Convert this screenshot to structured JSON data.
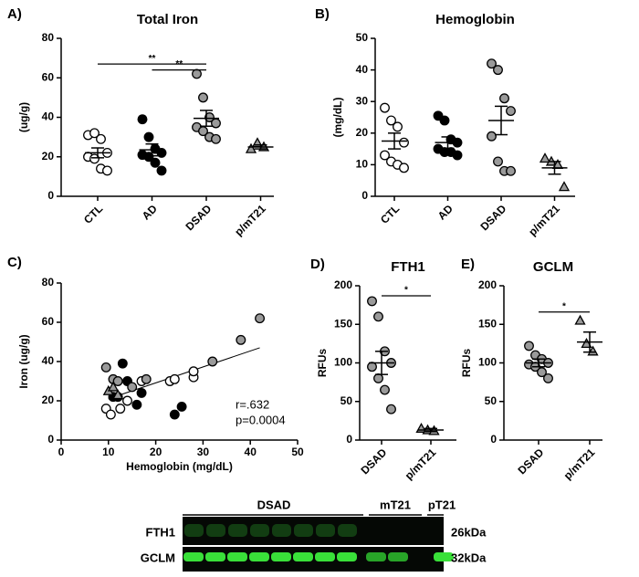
{
  "chart_data": [
    {
      "type": "dot",
      "panel": "A)",
      "title": "Total Iron",
      "y_label": "(ug/g)",
      "categories": [
        "CTL",
        "AD",
        "DSAD",
        "p/mT21"
      ],
      "points": [
        [
          31,
          32,
          29,
          22,
          20,
          19,
          14,
          13
        ],
        [
          39,
          30,
          24,
          22,
          21,
          20,
          17,
          13
        ],
        [
          62,
          50,
          40,
          37,
          35,
          33,
          30,
          29
        ],
        [
          24,
          27,
          25
        ]
      ],
      "means": [
        22,
        23.5,
        39.5,
        25
      ],
      "errors": [
        2.5,
        3,
        4,
        1
      ],
      "colors": [
        "#ffffff",
        "#000000",
        "#9a9a9a",
        "#9a9a9a"
      ],
      "markers": [
        "circle",
        "circle",
        "circle",
        "triangle"
      ],
      "ylim": [
        0,
        80
      ],
      "yticks": [
        0,
        20,
        40,
        60,
        80
      ],
      "significance": [
        {
          "from": 0,
          "to": 2,
          "y": 67,
          "label": "**"
        },
        {
          "from": 1,
          "to": 2,
          "y": 64,
          "label": "**"
        }
      ]
    },
    {
      "type": "dot",
      "panel": "B)",
      "title": "Hemoglobin",
      "y_label": "(mg/dL)",
      "categories": [
        "CTL",
        "AD",
        "DSAD",
        "p/mT21"
      ],
      "points": [
        [
          28,
          24,
          22,
          17,
          13,
          11,
          10,
          9
        ],
        [
          25.5,
          24,
          18,
          17,
          15,
          14,
          14,
          13
        ],
        [
          42,
          40,
          31,
          27,
          19,
          11,
          8,
          8
        ],
        [
          12,
          11,
          10,
          3
        ]
      ],
      "means": [
        17.5,
        17,
        24,
        9
      ],
      "errors": [
        2.5,
        1.8,
        4.5,
        2
      ],
      "colors": [
        "#ffffff",
        "#000000",
        "#9a9a9a",
        "#9a9a9a"
      ],
      "markers": [
        "circle",
        "circle",
        "circle",
        "triangle"
      ],
      "ylim": [
        0,
        50
      ],
      "yticks": [
        0,
        10,
        20,
        30,
        40,
        50
      ]
    },
    {
      "type": "scatter",
      "panel": "C)",
      "x_label": "Hemoglobin (mg/dL)",
      "y_label": "Iron (ug/g)",
      "series": [
        {
          "color": "#ffffff",
          "marker": "circle",
          "x": [
            9.5,
            10.5,
            12.5,
            14,
            17,
            23,
            24,
            28,
            28
          ],
          "values": [
            16,
            13,
            16,
            20,
            30,
            30,
            31,
            32,
            35
          ]
        },
        {
          "color": "#000000",
          "marker": "circle",
          "x": [
            11,
            12,
            13,
            14,
            16,
            17,
            24,
            25.5
          ],
          "values": [
            22,
            22,
            39,
            30,
            18,
            24,
            13,
            17
          ]
        },
        {
          "color": "#9a9a9a",
          "marker": "circle",
          "x": [
            9.5,
            11,
            12,
            15,
            18,
            32,
            38,
            42
          ],
          "values": [
            37,
            31,
            30,
            27,
            31,
            40,
            51,
            62
          ]
        },
        {
          "color": "#9a9a9a",
          "marker": "triangle",
          "x": [
            10,
            11,
            12
          ],
          "values": [
            25,
            27,
            23
          ]
        }
      ],
      "trendline": {
        "x": [
          10,
          42
        ],
        "values": [
          21,
          47
        ]
      },
      "annotations": [
        "r=.632",
        "p=0.0004"
      ],
      "xlim": [
        0,
        50
      ],
      "xticks": [
        0,
        10,
        20,
        30,
        40,
        50
      ],
      "ylim": [
        0,
        80
      ],
      "yticks": [
        0,
        20,
        40,
        60,
        80
      ]
    },
    {
      "type": "dot",
      "panel": "D)",
      "title": "FTH1",
      "y_label": "RFUs",
      "categories": [
        "DSAD",
        "p/mT21"
      ],
      "points": [
        [
          180,
          160,
          115,
          100,
          95,
          80,
          65,
          40
        ],
        [
          15,
          13,
          12
        ]
      ],
      "means": [
        100,
        13
      ],
      "errors": [
        15,
        2
      ],
      "colors": [
        "#9a9a9a",
        "#9a9a9a"
      ],
      "markers": [
        "circle",
        "triangle"
      ],
      "ylim": [
        0,
        200
      ],
      "yticks": [
        0,
        50,
        100,
        150,
        200
      ],
      "significance": [
        {
          "from": 0,
          "to": 1,
          "y": 187,
          "label": "*"
        }
      ]
    },
    {
      "type": "dot",
      "panel": "E)",
      "title": "GCLM",
      "y_label": "RFUs",
      "categories": [
        "DSAD",
        "p/mT21"
      ],
      "points": [
        [
          122,
          110,
          105,
          100,
          98,
          95,
          88,
          80
        ],
        [
          155,
          125,
          115
        ]
      ],
      "means": [
        100,
        127
      ],
      "errors": [
        5,
        13
      ],
      "colors": [
        "#9a9a9a",
        "#9a9a9a"
      ],
      "markers": [
        "circle",
        "triangle"
      ],
      "ylim": [
        0,
        200
      ],
      "yticks": [
        0,
        50,
        100,
        150,
        200
      ],
      "significance": [
        {
          "from": 0,
          "to": 1,
          "y": 166,
          "label": "*"
        }
      ]
    }
  ],
  "blot": {
    "groups": [
      "DSAD",
      "mT21",
      "pT21"
    ],
    "rows": [
      "FTH1",
      "GCLM"
    ],
    "sizes": [
      "26kDa",
      "32kDa"
    ]
  }
}
